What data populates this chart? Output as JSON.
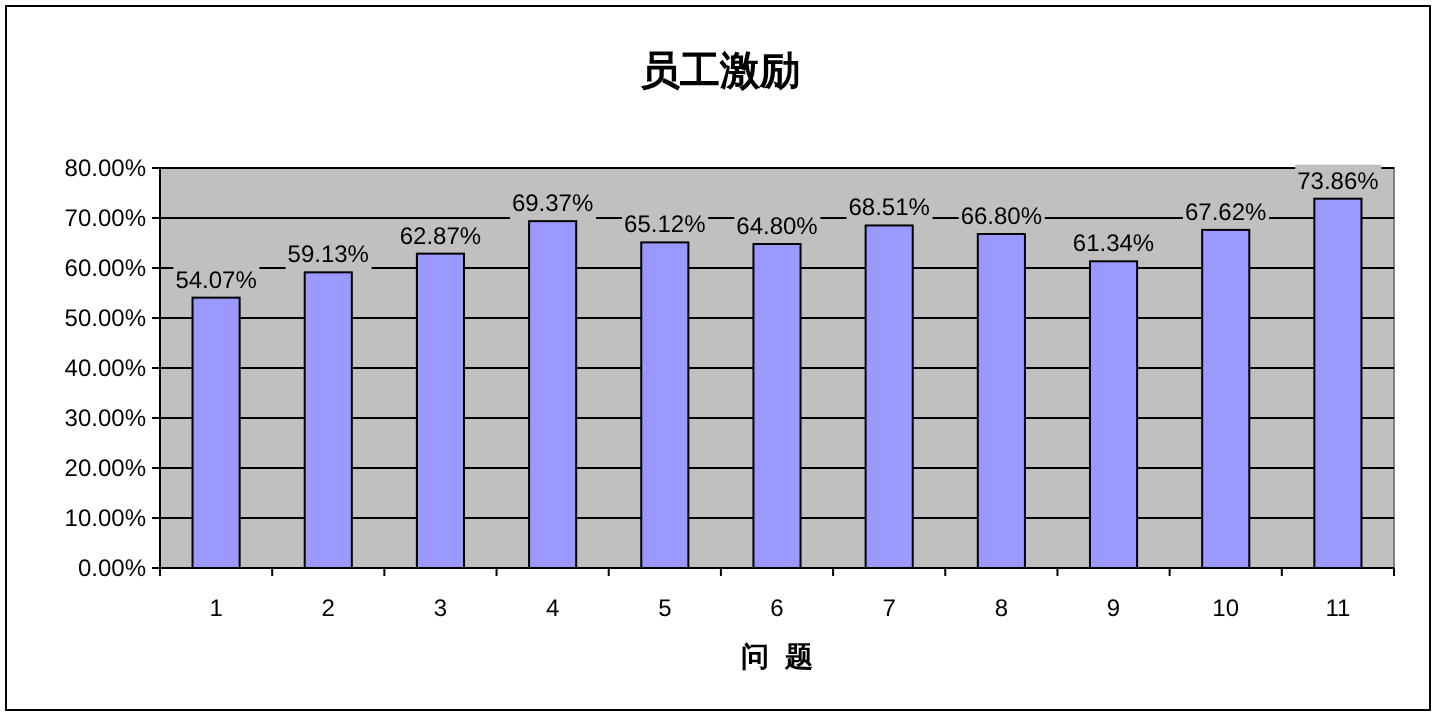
{
  "chart_data": {
    "type": "bar",
    "title": "员工激励",
    "xlabel": "问  题",
    "categories": [
      "1",
      "2",
      "3",
      "4",
      "5",
      "6",
      "7",
      "8",
      "9",
      "10",
      "11"
    ],
    "values": [
      54.07,
      59.13,
      62.87,
      69.37,
      65.12,
      64.8,
      68.51,
      66.8,
      61.34,
      67.62,
      73.86
    ],
    "value_labels": [
      "54.07%",
      "59.13%",
      "62.87%",
      "69.37%",
      "65.12%",
      "64.80%",
      "68.51%",
      "66.80%",
      "61.34%",
      "67.62%",
      "73.86%"
    ],
    "color": "#9999ff",
    "ylim": [
      0,
      80
    ],
    "yticks": [
      {
        "value": 0,
        "label": "0.00%"
      },
      {
        "value": 10,
        "label": "10.00%"
      },
      {
        "value": 20,
        "label": "20.00%"
      },
      {
        "value": 30,
        "label": "30.00%"
      },
      {
        "value": 40,
        "label": "40.00%"
      },
      {
        "value": 50,
        "label": "50.00%"
      },
      {
        "value": 60,
        "label": "60.00%"
      },
      {
        "value": 70,
        "label": "70.00%"
      },
      {
        "value": 80,
        "label": "80.00%"
      }
    ],
    "grid": "y"
  }
}
